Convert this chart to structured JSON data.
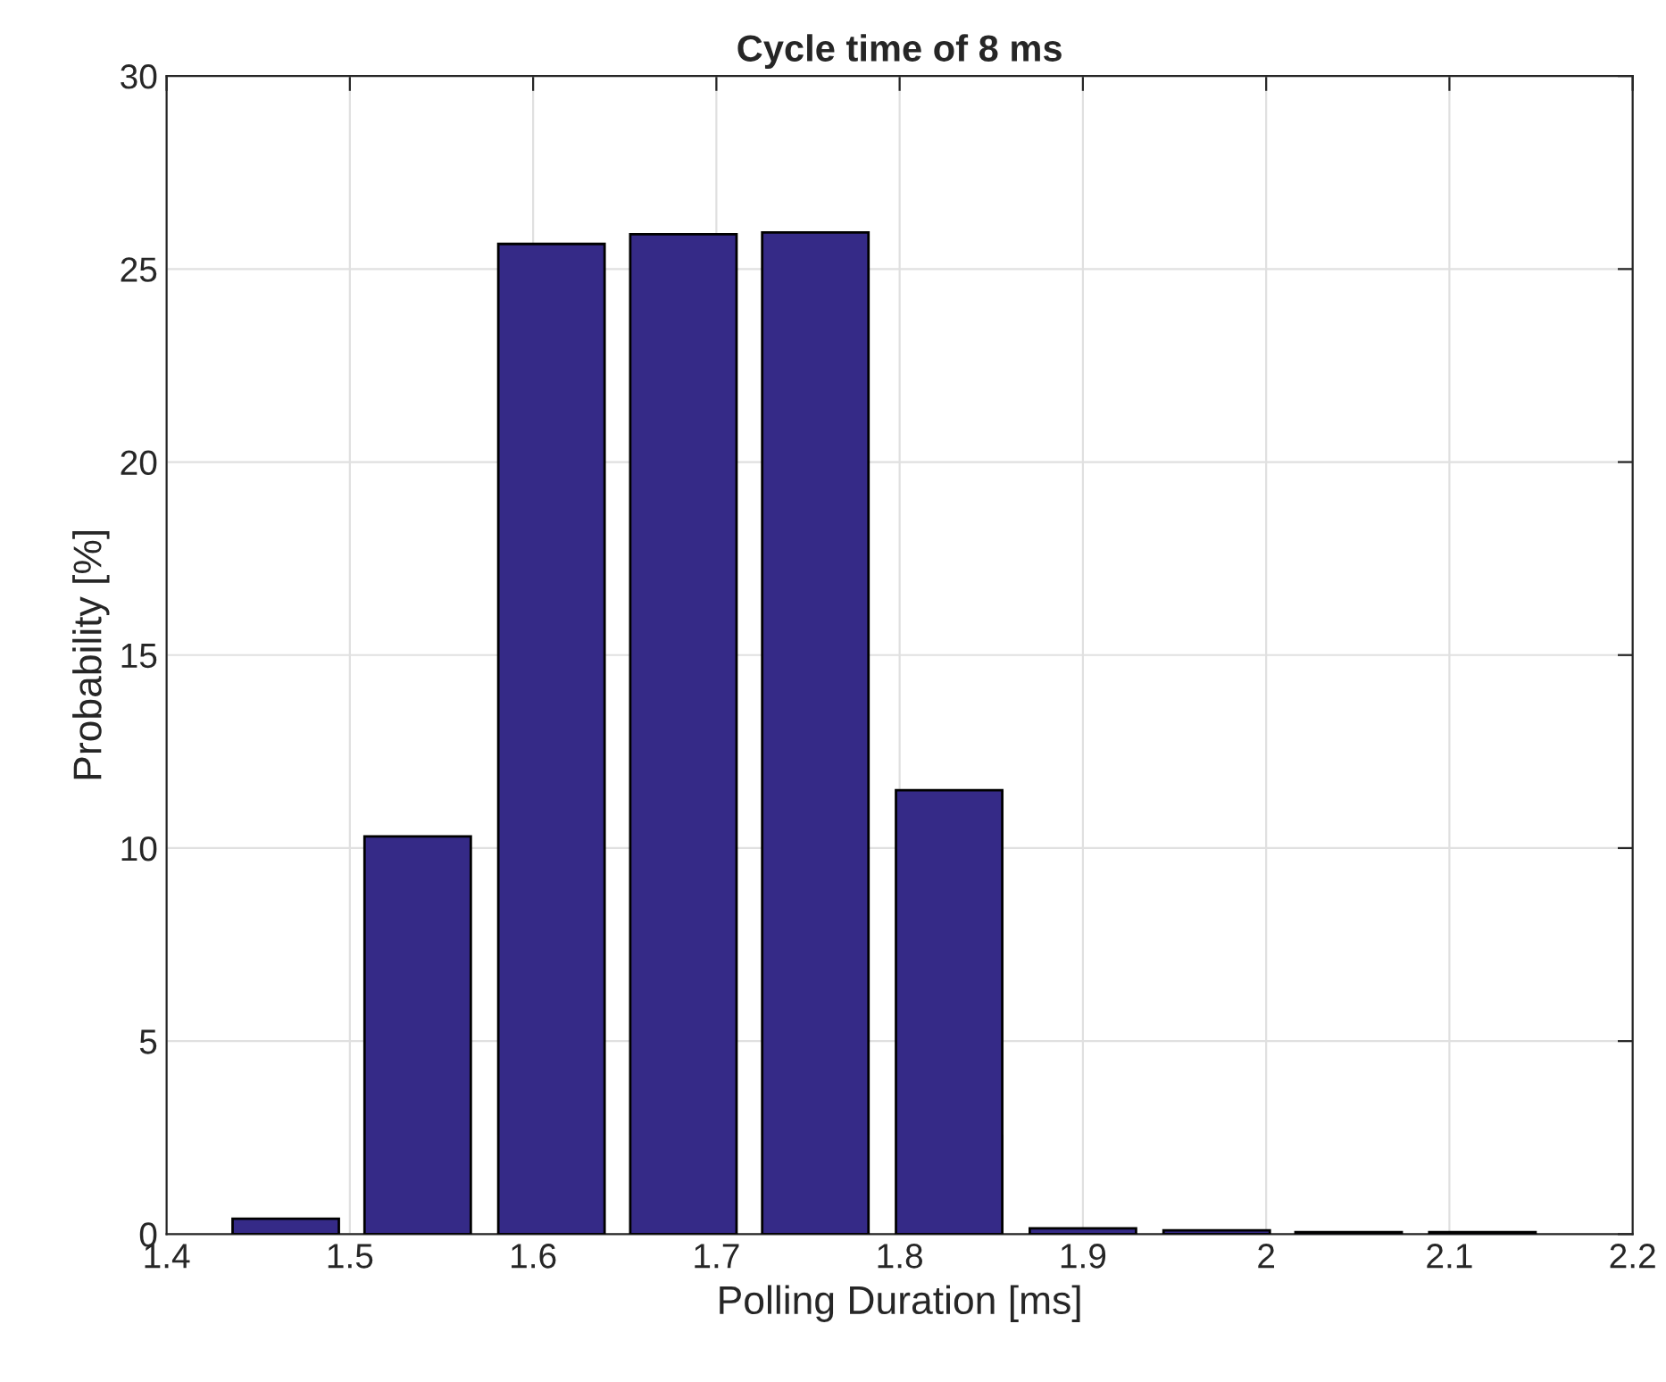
{
  "chart_data": {
    "type": "bar",
    "title": "Cycle time of 8 ms",
    "xlabel": "Polling Duration [ms]",
    "ylabel": "Probability [%]",
    "x": [
      1.465,
      1.537,
      1.61,
      1.682,
      1.754,
      1.827,
      1.9,
      1.973,
      2.045,
      2.118
    ],
    "values": [
      0.4,
      10.3,
      25.65,
      25.9,
      25.95,
      11.5,
      0.15,
      0.1,
      0.05,
      0.05
    ],
    "color": "#352a87",
    "xlim": [
      1.4,
      2.2
    ],
    "xticks": [
      1.4,
      1.5,
      1.6,
      1.7,
      1.8,
      1.9,
      2,
      2.1,
      2.2
    ],
    "ylim": [
      0,
      30
    ],
    "yticks": [
      0,
      5,
      10,
      15,
      20,
      25,
      30
    ],
    "grid": true
  }
}
